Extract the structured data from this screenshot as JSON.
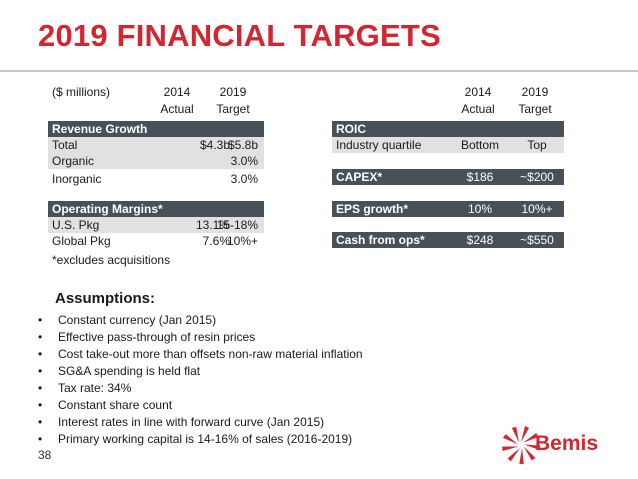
{
  "title": "2019 FINANCIAL TARGETS",
  "left_header": {
    "units": "($ millions)",
    "col1_year": "2014",
    "col1_type": "Actual",
    "col2_year": "2019",
    "col2_type": "Target"
  },
  "right_header": {
    "col1_year": "2014",
    "col1_type": "Actual",
    "col2_year": "2019",
    "col2_type": "Target"
  },
  "revenue": {
    "heading": "Revenue Growth",
    "rows": [
      {
        "label": "Total",
        "actual": "$4.3b",
        "target": "$5.8b"
      },
      {
        "label": "Organic",
        "actual": "",
        "target": "3.0%"
      },
      {
        "label": "Inorganic",
        "actual": "",
        "target": "3.0%"
      }
    ]
  },
  "margins": {
    "heading": "Operating Margins*",
    "rows": [
      {
        "label": "U.S. Pkg",
        "actual": "13.1%",
        "target": "15-18%"
      },
      {
        "label": "Global Pkg",
        "actual": "7.6%",
        "target": "10%+"
      }
    ]
  },
  "roic": {
    "heading": "ROIC",
    "row": {
      "label": "Industry quartile",
      "actual": "Bottom",
      "target": "Top"
    }
  },
  "capex": {
    "label": "CAPEX*",
    "actual": "$186",
    "target": "~$200"
  },
  "eps": {
    "label": "EPS growth*",
    "actual": "10%",
    "target": "10%+"
  },
  "cash": {
    "label": "Cash from ops*",
    "actual": "$248",
    "target": "~$550"
  },
  "footnote": "*excludes acquisitions",
  "assumptions": {
    "title": "Assumptions:",
    "bullet": "•",
    "items": [
      "Constant currency (Jan 2015)",
      "Effective pass-through of resin prices",
      "Cost take-out more than offsets non-raw material inflation",
      "SG&A spending is held flat",
      "Tax rate: 34%",
      "Constant share count",
      "Interest rates in line with forward curve (Jan 2015)",
      "Primary working capital is 14-16% of sales (2016-2019)"
    ]
  },
  "page_number": "38",
  "logo": {
    "text": "Bemis",
    "icon": "bemis-starburst-icon",
    "color": "#d22630"
  }
}
